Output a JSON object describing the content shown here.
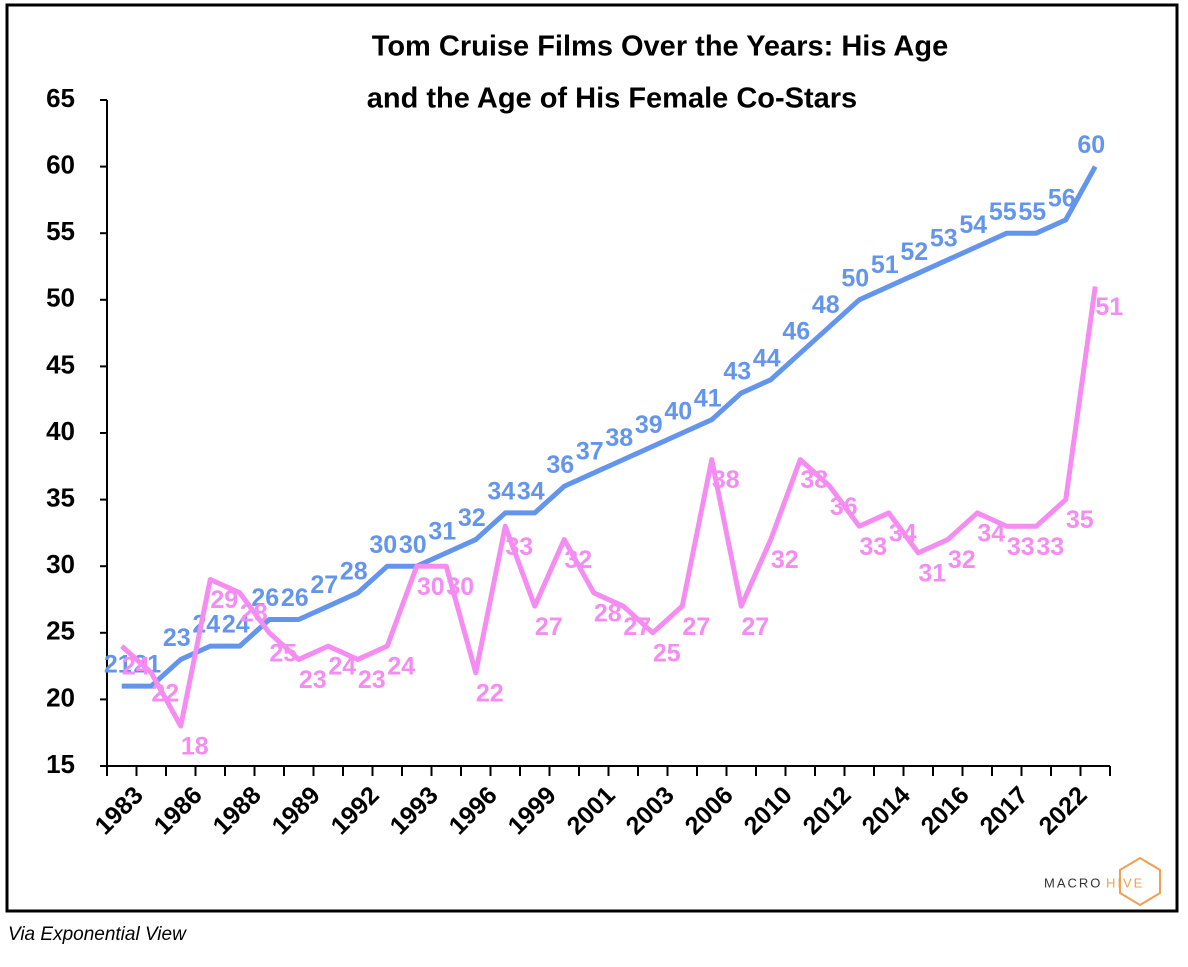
{
  "chart_data": {
    "type": "line",
    "title": [
      "Tom Cruise Films Over the Years: His Age",
      "and the Age of His Female Co-Stars"
    ],
    "categories": [
      "1983",
      null,
      "1986",
      null,
      "1988",
      null,
      "1989",
      null,
      "1992",
      null,
      "1993",
      null,
      "1996",
      null,
      "1999",
      null,
      "2001",
      null,
      "2003",
      null,
      "2006",
      null,
      "2010",
      null,
      "2012",
      null,
      "2014",
      null,
      "2016",
      null,
      "2017",
      null,
      "2022",
      null
    ],
    "series": [
      {
        "color": "#6495ed",
        "values": [
          21,
          21,
          23,
          24,
          24,
          26,
          26,
          27,
          28,
          30,
          30,
          31,
          32,
          34,
          34,
          36,
          37,
          38,
          39,
          40,
          41,
          43,
          44,
          46,
          48,
          50,
          51,
          52,
          53,
          54,
          55,
          55,
          56,
          60
        ]
      },
      {
        "color": "#f48cf2",
        "values": [
          24,
          22,
          18,
          29,
          28,
          25,
          23,
          24,
          23,
          24,
          30,
          30,
          22,
          33,
          27,
          32,
          28,
          27,
          25,
          27,
          38,
          27,
          32,
          38,
          36,
          33,
          34,
          31,
          32,
          34,
          33,
          33,
          35,
          51
        ]
      }
    ],
    "ylim": [
      15,
      65
    ],
    "yticks": [
      15,
      20,
      25,
      30,
      35,
      40,
      45,
      50,
      55,
      60,
      65
    ],
    "grid": false
  },
  "logo": [
    "MACRO",
    "HIVE"
  ],
  "caption": "Via Exponential View"
}
